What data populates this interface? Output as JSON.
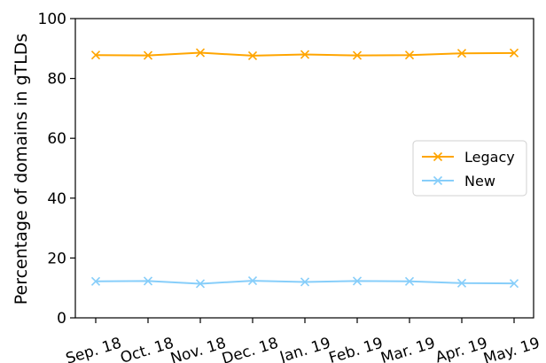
{
  "chart_data": {
    "type": "line",
    "categories": [
      "Sep. 18",
      "Oct. 18",
      "Nov. 18",
      "Dec. 18",
      "Jan. 19",
      "Feb. 19",
      "Mar. 19",
      "Apr. 19",
      "May. 19"
    ],
    "series": [
      {
        "name": "Legacy",
        "color": "#ffa500",
        "marker": "x",
        "values": [
          87.8,
          87.7,
          88.6,
          87.6,
          88.0,
          87.7,
          87.8,
          88.4,
          88.5
        ]
      },
      {
        "name": "New",
        "color": "#87cefa",
        "marker": "x",
        "values": [
          12.2,
          12.3,
          11.4,
          12.4,
          12.0,
          12.3,
          12.2,
          11.6,
          11.5
        ]
      }
    ],
    "ylabel": "Percentage of domains in gTLDs",
    "xlabel": "",
    "ylim": [
      0,
      100
    ],
    "yticks": [
      0,
      20,
      40,
      60,
      80,
      100
    ],
    "grid": false,
    "legend_position": "center-right"
  }
}
